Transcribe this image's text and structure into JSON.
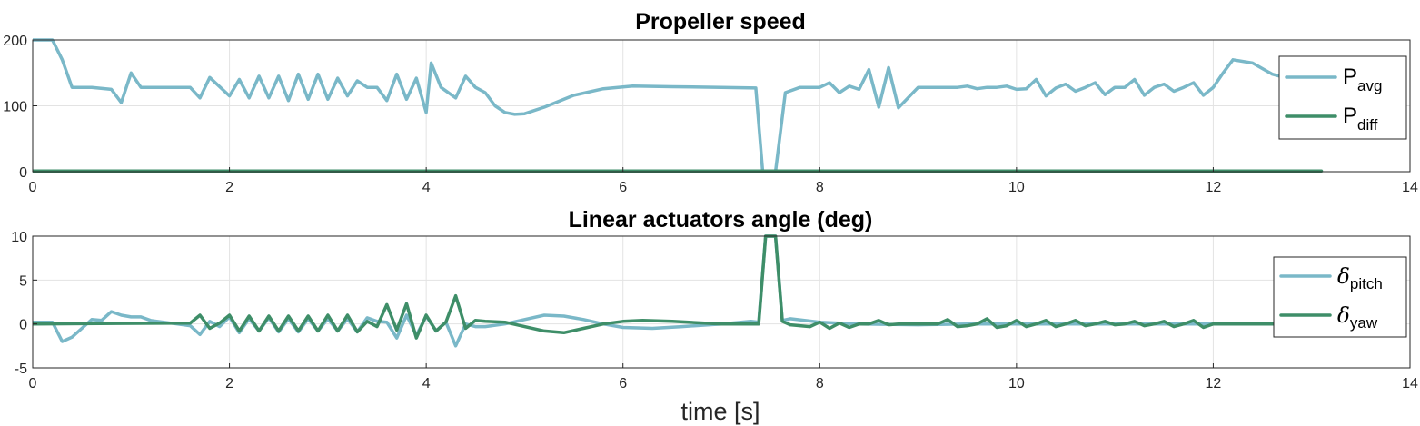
{
  "colors": {
    "series1": "#7ab8c8",
    "series2": "#3e8e68"
  },
  "xlabel": "time [s]",
  "chart_data": [
    {
      "type": "line",
      "title": "Propeller speed",
      "xlim": [
        0,
        14
      ],
      "ylim": [
        0,
        200
      ],
      "xticks": [
        0,
        2,
        4,
        6,
        8,
        10,
        12,
        14
      ],
      "yticks": [
        0,
        100,
        200
      ],
      "xtick_labels": [
        "0",
        "2",
        "4",
        "6",
        "8",
        "10",
        "12",
        "14"
      ],
      "ytick_labels": [
        "0",
        "100",
        "200"
      ],
      "legend_position": "right",
      "series": [
        {
          "name": "P",
          "sub": "avg",
          "color": "#7ab8c8",
          "x": [
            0,
            0.2,
            0.3,
            0.4,
            0.6,
            0.8,
            0.9,
            1.0,
            1.1,
            1.3,
            1.5,
            1.6,
            1.7,
            1.8,
            2.0,
            2.1,
            2.2,
            2.3,
            2.4,
            2.5,
            2.6,
            2.7,
            2.8,
            2.9,
            3.0,
            3.1,
            3.2,
            3.3,
            3.4,
            3.5,
            3.6,
            3.7,
            3.8,
            3.9,
            4.0,
            4.05,
            4.15,
            4.3,
            4.4,
            4.5,
            4.6,
            4.7,
            4.8,
            4.9,
            5.0,
            5.2,
            5.5,
            5.8,
            6.1,
            6.5,
            7.0,
            7.35,
            7.42,
            7.5,
            7.55,
            7.65,
            7.8,
            7.9,
            8.0,
            8.1,
            8.2,
            8.3,
            8.4,
            8.5,
            8.6,
            8.7,
            8.8,
            9.0,
            9.2,
            9.3,
            9.4,
            9.5,
            9.6,
            9.7,
            9.8,
            9.9,
            10.0,
            10.1,
            10.2,
            10.3,
            10.4,
            10.5,
            10.6,
            10.7,
            10.8,
            10.9,
            11.0,
            11.1,
            11.2,
            11.3,
            11.4,
            11.5,
            11.6,
            11.7,
            11.8,
            11.9,
            12.0,
            12.1,
            12.2,
            12.4,
            12.6,
            12.8,
            12.95
          ],
          "y": [
            200,
            200,
            170,
            128,
            128,
            125,
            105,
            150,
            128,
            128,
            128,
            128,
            112,
            143,
            115,
            140,
            112,
            145,
            112,
            145,
            108,
            148,
            110,
            148,
            110,
            142,
            115,
            138,
            128,
            128,
            108,
            148,
            110,
            142,
            90,
            165,
            128,
            112,
            145,
            128,
            120,
            100,
            90,
            87,
            88,
            98,
            116,
            126,
            130,
            129,
            128,
            127,
            0,
            0,
            0,
            120,
            128,
            128,
            128,
            135,
            120,
            130,
            125,
            155,
            98,
            158,
            97,
            128,
            128,
            128,
            128,
            130,
            126,
            128,
            128,
            130,
            125,
            126,
            140,
            115,
            127,
            133,
            122,
            128,
            135,
            117,
            128,
            128,
            140,
            116,
            128,
            133,
            122,
            128,
            135,
            116,
            128,
            150,
            170,
            165,
            148,
            140,
            140
          ]
        },
        {
          "name": "P",
          "sub": "diff",
          "color": "#3e8e68",
          "x": [
            0,
            13.1
          ],
          "y": [
            1,
            1
          ]
        }
      ]
    },
    {
      "type": "line",
      "title": "Linear actuators angle (deg)",
      "xlim": [
        0,
        14
      ],
      "ylim": [
        -5,
        10
      ],
      "xticks": [
        0,
        2,
        4,
        6,
        8,
        10,
        12,
        14
      ],
      "yticks": [
        -5,
        0,
        5,
        10
      ],
      "xtick_labels": [
        "0",
        "2",
        "4",
        "6",
        "8",
        "10",
        "12",
        "14"
      ],
      "ytick_labels": [
        "-5",
        "0",
        "5",
        "10"
      ],
      "legend_position": "right",
      "series": [
        {
          "name": "δ",
          "sub": "pitch",
          "color": "#7ab8c8",
          "x": [
            0,
            0.2,
            0.3,
            0.4,
            0.5,
            0.6,
            0.7,
            0.8,
            0.9,
            1.0,
            1.1,
            1.2,
            1.4,
            1.6,
            1.7,
            1.8,
            1.9,
            2.0,
            2.1,
            2.2,
            2.3,
            2.4,
            2.5,
            2.6,
            2.7,
            2.8,
            2.9,
            3.0,
            3.1,
            3.2,
            3.3,
            3.4,
            3.5,
            3.6,
            3.7,
            3.8,
            3.9,
            4.0,
            4.1,
            4.2,
            4.3,
            4.4,
            4.5,
            4.6,
            4.8,
            5.0,
            5.2,
            5.4,
            5.6,
            5.8,
            6.0,
            6.3,
            6.6,
            7.0,
            7.3,
            7.38,
            7.45,
            7.55,
            7.62,
            7.7,
            8.0,
            8.4,
            9.0,
            9.5,
            10.0,
            10.5,
            11.0,
            11.5,
            12.0,
            12.5,
            13.0
          ],
          "y": [
            0.2,
            0.2,
            -2,
            -1.5,
            -0.5,
            0.5,
            0.4,
            1.4,
            1.0,
            0.8,
            0.8,
            0.4,
            0.1,
            -0.2,
            -1.2,
            0.3,
            -0.3,
            0.8,
            -1.0,
            0.6,
            -0.8,
            0.7,
            -0.9,
            0.6,
            -0.9,
            0.6,
            -0.8,
            0.6,
            -0.8,
            0.6,
            -0.9,
            0.7,
            0.3,
            0.2,
            -1.6,
            1.0,
            -1.3,
            0.9,
            -0.8,
            0.2,
            -2.5,
            0.0,
            -0.3,
            -0.3,
            0.0,
            0.5,
            1.0,
            0.9,
            0.5,
            0.0,
            -0.4,
            -0.5,
            -0.3,
            0.0,
            0.3,
            0.2,
            10.0,
            10.0,
            0.4,
            0.6,
            0.2,
            0.0,
            -0.1,
            0.0,
            0.0,
            0.0,
            0.0,
            0.0,
            0.0,
            0.0,
            0.0
          ]
        },
        {
          "name": "δ",
          "sub": "yaw",
          "color": "#3e8e68",
          "x": [
            0,
            1.6,
            1.7,
            1.8,
            1.9,
            2.0,
            2.1,
            2.2,
            2.3,
            2.4,
            2.5,
            2.6,
            2.7,
            2.8,
            2.9,
            3.0,
            3.1,
            3.2,
            3.3,
            3.4,
            3.5,
            3.6,
            3.7,
            3.8,
            3.9,
            4.0,
            4.1,
            4.2,
            4.3,
            4.4,
            4.5,
            4.6,
            4.8,
            5.0,
            5.2,
            5.4,
            5.6,
            5.8,
            6.0,
            6.2,
            6.5,
            7.0,
            7.3,
            7.38,
            7.45,
            7.55,
            7.62,
            7.7,
            7.9,
            8.0,
            8.1,
            8.2,
            8.3,
            8.4,
            8.5,
            8.6,
            8.7,
            8.8,
            9.0,
            9.2,
            9.3,
            9.4,
            9.5,
            9.6,
            9.7,
            9.8,
            9.9,
            10.0,
            10.1,
            10.2,
            10.3,
            10.4,
            10.5,
            10.6,
            10.7,
            10.8,
            10.9,
            11.0,
            11.1,
            11.2,
            11.3,
            11.4,
            11.5,
            11.6,
            11.7,
            11.8,
            11.9,
            12.0,
            12.2,
            12.5,
            13.0
          ],
          "y": [
            0.0,
            0.1,
            1.0,
            -0.5,
            0.1,
            1.0,
            -0.8,
            0.9,
            -0.8,
            0.9,
            -0.8,
            0.9,
            -0.8,
            0.9,
            -0.8,
            1.0,
            -0.8,
            1.0,
            -0.9,
            0.3,
            -0.3,
            2.2,
            -0.7,
            2.3,
            -1.6,
            1.0,
            -0.8,
            0.2,
            3.2,
            -0.5,
            0.4,
            0.3,
            0.2,
            -0.3,
            -0.8,
            -1.0,
            -0.5,
            0.0,
            0.3,
            0.4,
            0.3,
            0.0,
            0.0,
            0.0,
            10.0,
            10.0,
            0.3,
            -0.1,
            -0.3,
            0.2,
            -0.5,
            0.1,
            -0.4,
            0.0,
            0.0,
            0.4,
            -0.1,
            0.0,
            0.0,
            0.0,
            0.5,
            -0.3,
            -0.2,
            0.0,
            0.6,
            -0.4,
            -0.2,
            0.4,
            -0.3,
            0.0,
            0.4,
            -0.3,
            0.0,
            0.4,
            -0.2,
            0.0,
            0.3,
            -0.1,
            0.0,
            0.3,
            -0.2,
            0.0,
            0.3,
            -0.3,
            0.0,
            0.4,
            -0.4,
            0.0,
            0.0,
            0.0,
            0.0
          ]
        }
      ]
    }
  ]
}
